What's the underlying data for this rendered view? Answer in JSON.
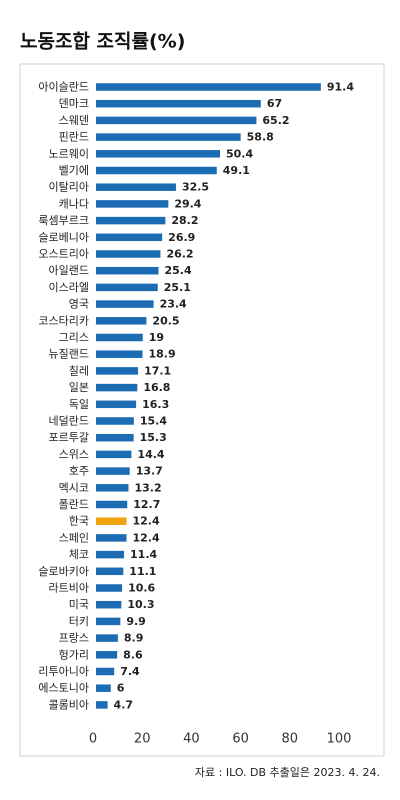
{
  "chart_data": {
    "type": "hbar",
    "title": "노동조합 조직률(%)",
    "categories": [
      "아이슬란드",
      "덴마크",
      "스웨덴",
      "핀란드",
      "노르웨이",
      "벨기에",
      "이탈리아",
      "캐나다",
      "룩셈부르크",
      "슬로베니아",
      "오스트리아",
      "아일랜드",
      "이스라엘",
      "영국",
      "코스타리카",
      "그리스",
      "뉴질랜드",
      "칠레",
      "일본",
      "독일",
      "네덜란드",
      "포르투갈",
      "스위스",
      "호주",
      "멕시코",
      "폴란드",
      "한국",
      "스페인",
      "체코",
      "슬로바키아",
      "라트비아",
      "미국",
      "터키",
      "프랑스",
      "헝가리",
      "리투아니아",
      "에스토니아",
      "콜롬비아"
    ],
    "values": [
      91.4,
      67,
      65.2,
      58.8,
      50.4,
      49.1,
      32.5,
      29.4,
      28.2,
      26.9,
      26.2,
      25.4,
      25.1,
      23.4,
      20.5,
      19,
      18.9,
      17.1,
      16.8,
      16.3,
      15.4,
      15.3,
      14.4,
      13.7,
      13.2,
      12.7,
      12.4,
      12.4,
      11.4,
      11.1,
      10.6,
      10.3,
      9.9,
      8.9,
      8.6,
      7.4,
      6,
      4.7
    ],
    "colors": [
      "#1c6cb4",
      "#1c6cb4",
      "#1c6cb4",
      "#1c6cb4",
      "#1c6cb4",
      "#1c6cb4",
      "#1c6cb4",
      "#1c6cb4",
      "#1c6cb4",
      "#1c6cb4",
      "#1c6cb4",
      "#1c6cb4",
      "#1c6cb4",
      "#1c6cb4",
      "#1c6cb4",
      "#1c6cb4",
      "#1c6cb4",
      "#1c6cb4",
      "#1c6cb4",
      "#1c6cb4",
      "#1c6cb4",
      "#1c6cb4",
      "#1c6cb4",
      "#1c6cb4",
      "#1c6cb4",
      "#1c6cb4",
      "#f0a30a",
      "#1c6cb4",
      "#1c6cb4",
      "#1c6cb4",
      "#1c6cb4",
      "#1c6cb4",
      "#1c6cb4",
      "#1c6cb4",
      "#1c6cb4",
      "#1c6cb4",
      "#1c6cb4",
      "#1c6cb4"
    ],
    "xlim": [
      0,
      100
    ],
    "xticks": [
      0,
      20,
      40,
      60,
      80,
      100
    ],
    "grid": false,
    "source": "자료 : ILO. DB 추출일은 2023. 4. 24."
  }
}
